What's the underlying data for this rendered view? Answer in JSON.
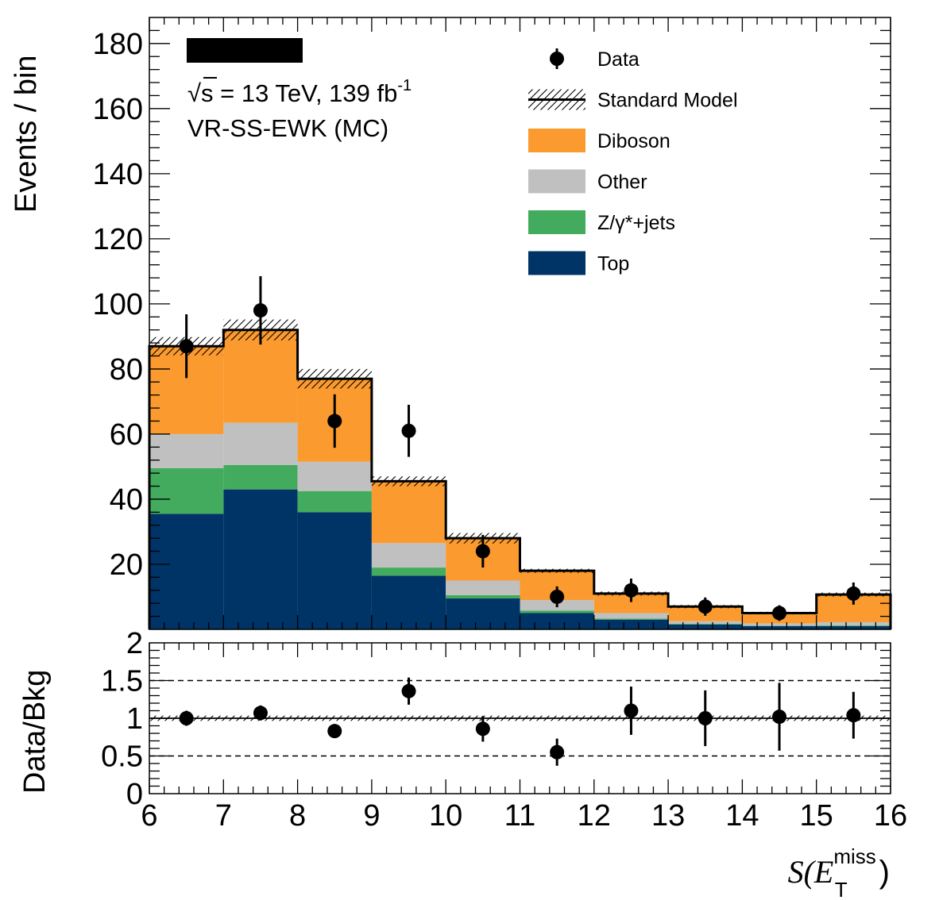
{
  "chart_data": {
    "type": "bar",
    "stacked": true,
    "title": "",
    "annotations": {
      "energy_lumi_prefix": "√s = 13 TeV, 139 fb",
      "energy_lumi_superscript": "-1",
      "region": "VR-SS-EWK (MC)"
    },
    "xlabel_main": "S(E",
    "xlabel_sub": "T",
    "xlabel_sup": "miss",
    "xlabel_close": ")",
    "ylabel": "Events / bin",
    "ratio_ylabel": "Data/Bkg",
    "xlim": [
      6,
      16
    ],
    "ylim": [
      0,
      188
    ],
    "ratio_ylim": [
      0,
      2
    ],
    "x_ticks": [
      "6",
      "7",
      "8",
      "9",
      "10",
      "11",
      "12",
      "13",
      "14",
      "15",
      "16"
    ],
    "y_ticks": [
      "20",
      "40",
      "60",
      "80",
      "100",
      "120",
      "140",
      "160",
      "180"
    ],
    "ratio_ticks": [
      "0",
      "0.5",
      "1",
      "1.5",
      "2"
    ],
    "ratio_reference_lines": [
      0.5,
      1.5
    ],
    "bin_edges": [
      6,
      7,
      8,
      9,
      10,
      11,
      12,
      13,
      14,
      15,
      16
    ],
    "legend_position": "top-right",
    "legend": [
      {
        "label": "Data",
        "kind": "marker"
      },
      {
        "label": "Standard Model",
        "kind": "hatch"
      },
      {
        "label": "Diboson",
        "kind": "fill",
        "color": "#fb9a2e"
      },
      {
        "label": "Other",
        "kind": "fill",
        "color": "#c0c0c0"
      },
      {
        "label": "Z/γ*+jets",
        "kind": "fill",
        "color": "#42ab5d"
      },
      {
        "label": "Top",
        "kind": "fill",
        "color": "#003366"
      }
    ],
    "stack_order_bottom_to_top": [
      "Top",
      "Z/γ*+jets",
      "Other",
      "Diboson"
    ],
    "series": [
      {
        "name": "Top",
        "color": "#003366",
        "values": [
          35.5,
          43,
          36,
          16.5,
          9.5,
          5,
          3,
          1.5,
          1,
          1
        ]
      },
      {
        "name": "Z/γ*+jets",
        "color": "#42ab5d",
        "values": [
          14,
          7.5,
          6.5,
          2.5,
          1,
          0.8,
          0.3,
          0.2,
          0.1,
          0.2
        ]
      },
      {
        "name": "Other",
        "color": "#c0c0c0",
        "values": [
          10.5,
          13,
          9,
          7.5,
          4.5,
          3.2,
          1.7,
          0.8,
          0.7,
          1
        ]
      },
      {
        "name": "Diboson",
        "color": "#fb9a2e",
        "values": [
          27,
          28.5,
          25.5,
          19,
          13,
          9,
          6,
          4.5,
          3.2,
          8.5
        ]
      }
    ],
    "sm_total": [
      87,
      92,
      77,
      45.5,
      28,
      18,
      11,
      7,
      5,
      10.7
    ],
    "sm_uncertainty": [
      2.8,
      3.2,
      3.0,
      1.5,
      1.6,
      0.6,
      0.6,
      0.5,
      0.4,
      0.6
    ],
    "data": [
      {
        "x": 6.5,
        "y": 87,
        "yerr": 9.8
      },
      {
        "x": 7.5,
        "y": 98,
        "yerr": 10.5
      },
      {
        "x": 8.5,
        "y": 64,
        "yerr": 8.2
      },
      {
        "x": 9.5,
        "y": 61,
        "yerr": 8.0
      },
      {
        "x": 10.5,
        "y": 24,
        "yerr": 5.0
      },
      {
        "x": 11.5,
        "y": 10,
        "yerr": 3.2
      },
      {
        "x": 12.5,
        "y": 12,
        "yerr": 3.6
      },
      {
        "x": 13.5,
        "y": 7,
        "yerr": 2.8
      },
      {
        "x": 14.5,
        "y": 5,
        "yerr": 2.4
      },
      {
        "x": 15.5,
        "y": 11,
        "yerr": 3.4
      }
    ],
    "ratio": [
      {
        "x": 6.5,
        "y": 1.0,
        "yerr": 0.1
      },
      {
        "x": 7.5,
        "y": 1.07,
        "yerr": 0.1
      },
      {
        "x": 8.5,
        "y": 0.83,
        "yerr": 0.07
      },
      {
        "x": 9.5,
        "y": 1.36,
        "yerr": 0.18
      },
      {
        "x": 10.5,
        "y": 0.86,
        "yerr": 0.17
      },
      {
        "x": 11.5,
        "y": 0.55,
        "yerr": 0.18
      },
      {
        "x": 12.5,
        "y": 1.1,
        "yerr": 0.32
      },
      {
        "x": 13.5,
        "y": 1.0,
        "yerr": 0.37
      },
      {
        "x": 14.5,
        "y": 1.02,
        "yerr": 0.45
      },
      {
        "x": 15.5,
        "y": 1.04,
        "yerr": 0.31
      }
    ],
    "ratio_band_uncertainty": 0.035
  }
}
